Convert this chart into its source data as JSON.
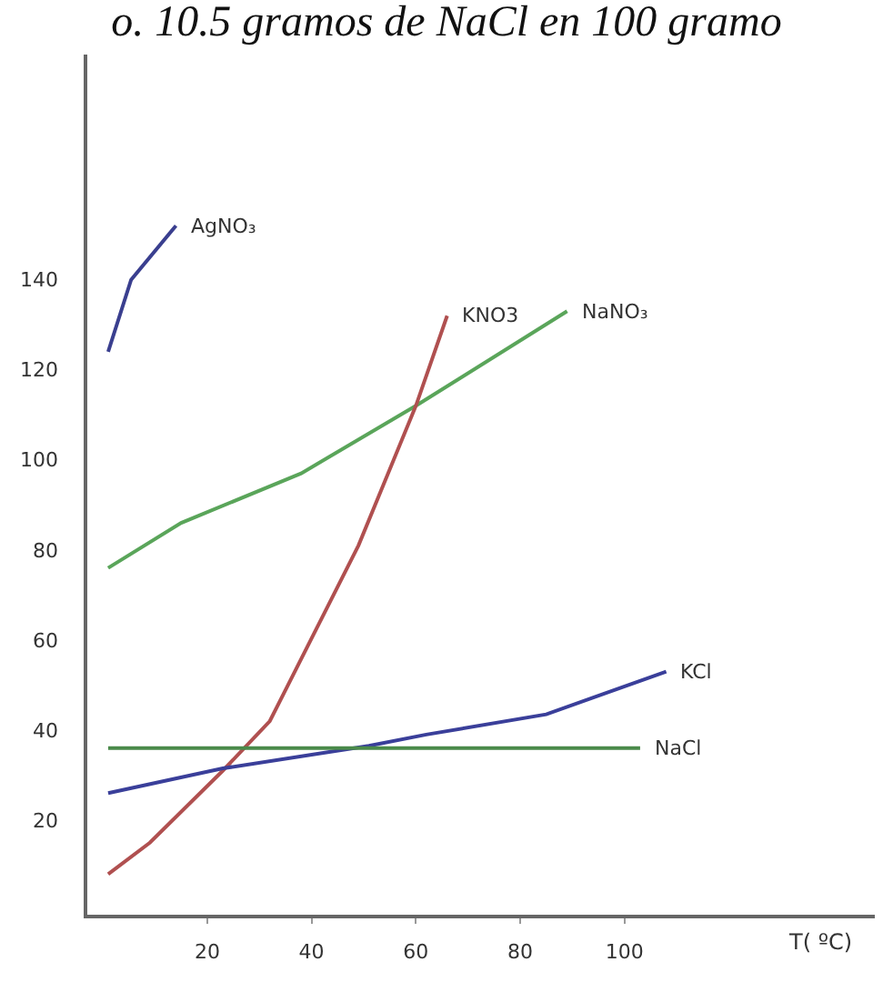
{
  "chart_data": {
    "type": "line",
    "title": "o. 10.5 gramos de NaCl en 100 gramo",
    "xlabel": "T( ºC)",
    "xlim": [
      -3,
      148
    ],
    "xticks": [
      20,
      40,
      60,
      80,
      100
    ],
    "ylim": [
      -1,
      190
    ],
    "yticks": [
      20,
      40,
      60,
      80,
      100,
      120,
      140
    ],
    "legend": false,
    "marker": "none",
    "line_style": "solid",
    "series": [
      {
        "name": "AgNO₃",
        "color": "#3a3f8f",
        "x": [
          1,
          5.4,
          14
        ],
        "values": [
          124,
          140,
          152
        ]
      },
      {
        "name": "NaNO₃",
        "color": "#5aa55a",
        "x": [
          1,
          15,
          38,
          60,
          89
        ],
        "values": [
          76,
          86,
          97,
          112,
          133
        ]
      },
      {
        "name": "KNO3",
        "color": "#b05050",
        "x": [
          1,
          9,
          23,
          32,
          49,
          60,
          66
        ],
        "values": [
          8,
          15,
          31,
          42,
          81,
          112,
          132
        ]
      },
      {
        "name": "KCl",
        "color": "#3a3f9a",
        "x": [
          1,
          23,
          51,
          62,
          85,
          108
        ],
        "values": [
          26,
          31.5,
          36.5,
          39,
          43.5,
          53
        ]
      },
      {
        "name": "NaCl",
        "color": "#4a8a4a",
        "x": [
          1,
          103
        ],
        "values": [
          36,
          36
        ]
      }
    ]
  }
}
